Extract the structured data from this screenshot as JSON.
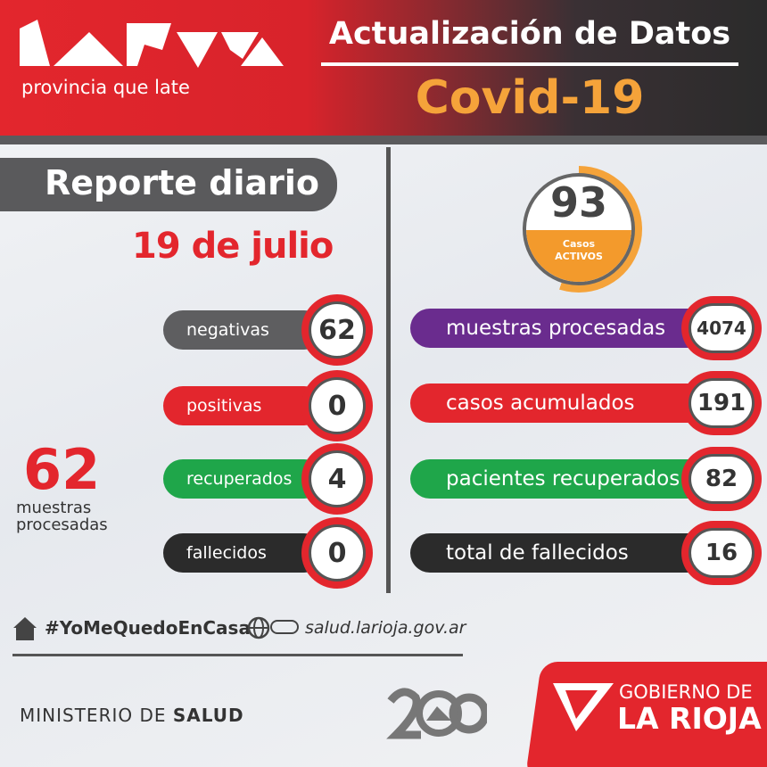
{
  "header": {
    "tagline": "provincia que late",
    "title": "Actualización de Datos",
    "subtitle": "Covid-19"
  },
  "left": {
    "heading": "Reporte diario",
    "date": "19 de julio",
    "stats": [
      {
        "label": "negativas",
        "value": 62
      },
      {
        "label": "positivas",
        "value": 0
      },
      {
        "label": "recuperados",
        "value": 4
      },
      {
        "label": "fallecidos",
        "value": 0
      }
    ],
    "total": {
      "value": 62,
      "label": "muestras procesadas"
    }
  },
  "right": {
    "active": {
      "value": 93,
      "label_top": "Casos",
      "label_bottom": "ACTIVOS"
    },
    "stats": [
      {
        "label": "muestras procesadas",
        "value": 4074
      },
      {
        "label": "casos acumulados",
        "value": 191
      },
      {
        "label": "pacientes recuperados",
        "value": 82
      },
      {
        "label": "total de fallecidos",
        "value": 16
      }
    ]
  },
  "footer": {
    "hashtag": "#YoMeQuedoEnCasa",
    "website": "salud.larioja.gov.ar",
    "ministry": "MINISTERIO DE",
    "ministry_bold": "SALUD",
    "gov_top": "GOBIERNO DE",
    "gov_bottom": "LA RIOJA"
  }
}
